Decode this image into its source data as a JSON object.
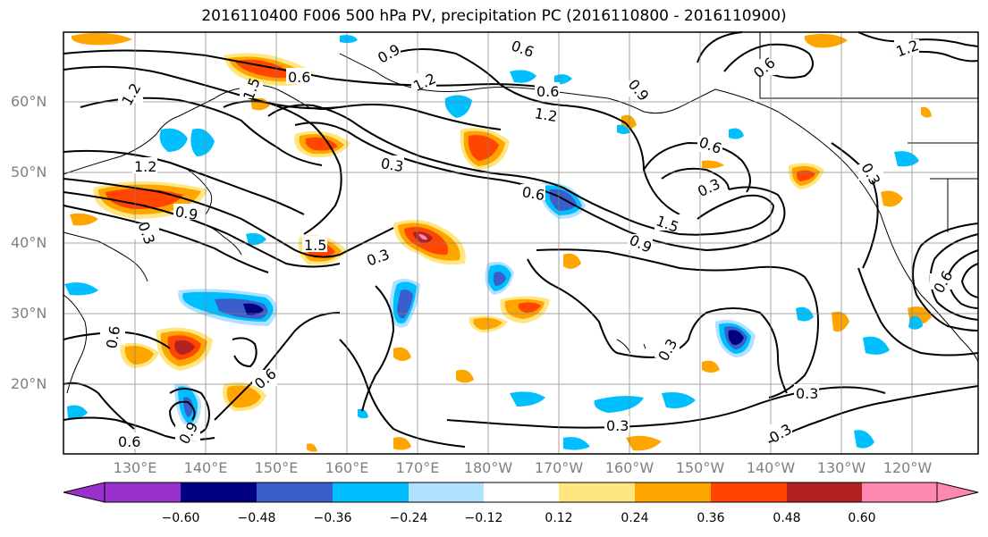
{
  "title": "2016110400 F006 500 hPa PV, precipitation PC (2016110800 - 2016110900)",
  "lat_labels": [
    "60°N",
    "50°N",
    "40°N",
    "30°N",
    "20°N"
  ],
  "lon_labels": [
    "130°E",
    "140°E",
    "150°E",
    "160°E",
    "170°E",
    "180°W",
    "170°W",
    "160°W",
    "150°W",
    "140°W",
    "130°W",
    "120°W"
  ],
  "contour_labels": [
    "1.2",
    "0.6",
    "0.9",
    "1.2",
    "0.6",
    "0.6",
    "0.9",
    "1.5",
    "1.2",
    "0.3",
    "1.2",
    "0.6",
    "0.3",
    "0.6",
    "0.9",
    "0.3",
    "1.5",
    "1.5",
    "0.3",
    "0.9",
    "0.3",
    "0.6",
    "0.6",
    "0.9",
    "0.6",
    "0.3",
    "0.3",
    "0.3",
    "0.3",
    "0.6",
    "1.2",
    "0.6"
  ],
  "colorbar": {
    "ticks": [
      "−0.60",
      "−0.48",
      "−0.36",
      "−0.24",
      "−0.12",
      "0.12",
      "0.24",
      "0.36",
      "0.48",
      "0.60"
    ],
    "colors": [
      "#9932cc",
      "#000080",
      "#3a5fcd",
      "#00bfff",
      "#b0e2ff",
      "#ffffff",
      "#ffe680",
      "#ffa500",
      "#ff4500",
      "#b22222",
      "#ff88b0"
    ]
  }
}
